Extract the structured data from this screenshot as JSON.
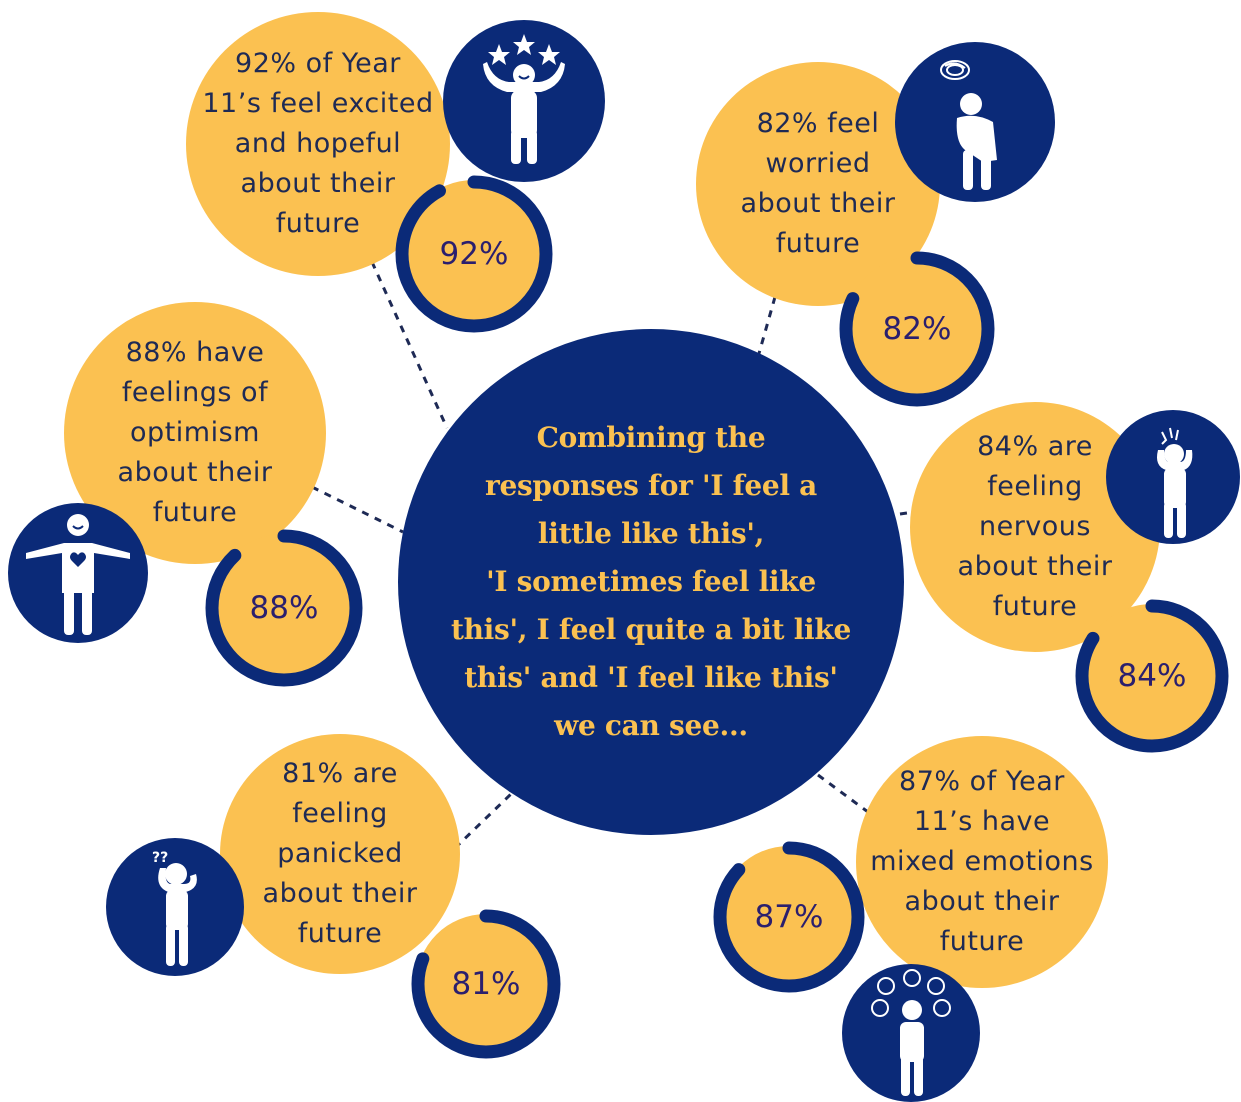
{
  "center_text": "Combining the\nresponses for 'I feel a\nlittle like this',\n'I sometimes feel like\nthis', I feel quite a bit like\nthis' and 'I feel like this'\nwe can see...",
  "colors": {
    "navy": "#0B2A78",
    "amber": "#FBC151",
    "ring": "#0B2A78",
    "percent_text": "#2B1F6E"
  },
  "stats": [
    {
      "id": "excited",
      "text_lines": [
        "92% of Year",
        "11’s feel excited",
        "and hopeful",
        "about their",
        "future"
      ],
      "percent_label": "92%",
      "percent": 92,
      "icon": "cheering-person-stars-icon"
    },
    {
      "id": "worried",
      "text_lines": [
        "82% feel",
        "worried",
        "about their",
        "future"
      ],
      "percent_label": "82%",
      "percent": 82,
      "icon": "worried-seated-person-icon"
    },
    {
      "id": "optimism",
      "text_lines": [
        "88% have",
        "feelings of",
        "optimism",
        "about their",
        "future"
      ],
      "percent_label": "88%",
      "percent": 88,
      "icon": "person-heart-open-arms-icon"
    },
    {
      "id": "nervous",
      "text_lines": [
        "84% are",
        "feeling",
        "nervous",
        "about their",
        "future"
      ],
      "percent_label": "84%",
      "percent": 84,
      "icon": "nervous-person-headache-icon"
    },
    {
      "id": "panicked",
      "text_lines": [
        "81% are",
        "feeling",
        "panicked",
        "about their",
        "future"
      ],
      "percent_label": "81%",
      "percent": 81,
      "icon": "confused-person-question-marks-icon"
    },
    {
      "id": "mixed",
      "text_lines": [
        "87% of Year",
        "11’s have",
        "mixed emotions",
        "about their",
        "future"
      ],
      "percent_label": "87%",
      "percent": 87,
      "icon": "thinking-person-emotions-icon"
    }
  ]
}
